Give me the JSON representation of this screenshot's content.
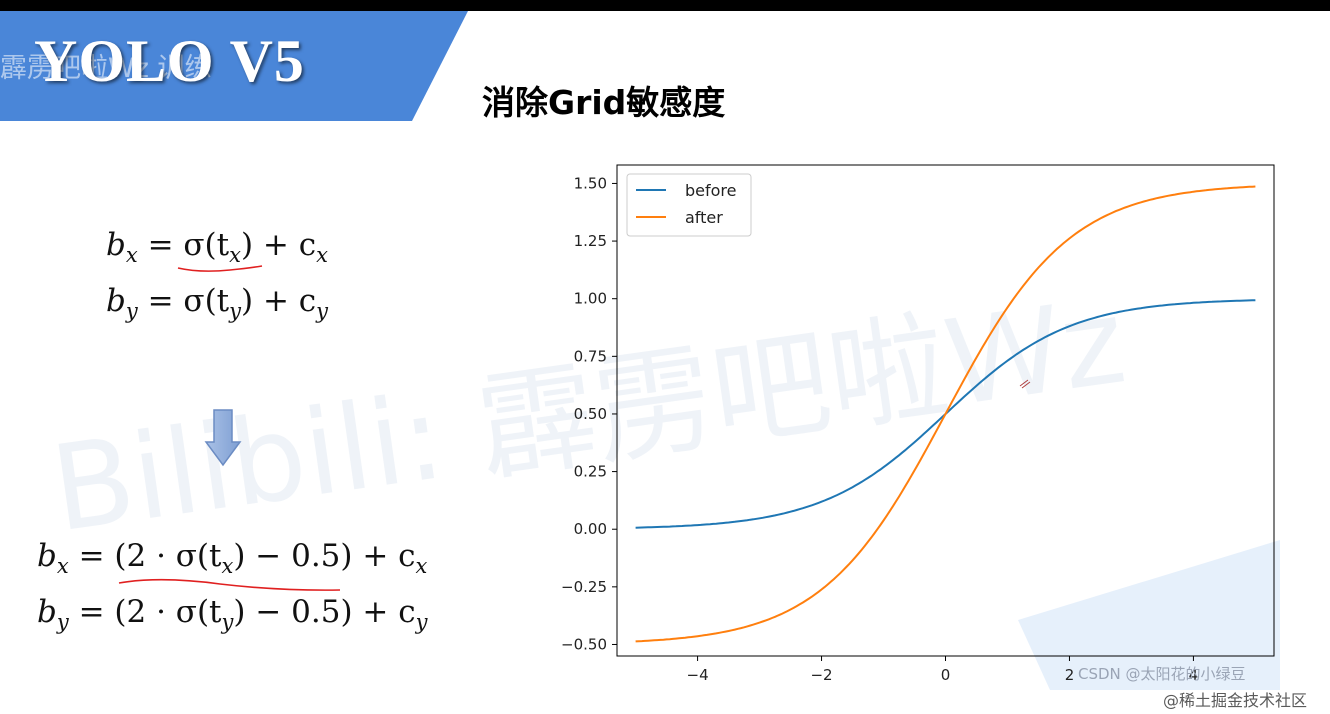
{
  "banner": {
    "title": "YOLO V5",
    "watermark": "霹雳吧啦Wz 训练",
    "color": "#4a86d8"
  },
  "heading": "消除Grid敏感度",
  "background_watermark": "Bilibili: 霹雳吧啦Wz",
  "equations": {
    "original": [
      {
        "lhs": "b",
        "lhs_sub": "x",
        "expr": "= σ(t",
        "expr_sub": "x",
        "tail": ") + c",
        "tail_sub": "x"
      },
      {
        "lhs": "b",
        "lhs_sub": "y",
        "expr": "= σ(t",
        "expr_sub": "y",
        "tail": ") + c",
        "tail_sub": "y"
      }
    ],
    "modified": [
      {
        "lhs": "b",
        "lhs_sub": "x",
        "expr": "= (2 · σ(t",
        "expr_sub": "x",
        "tail": ") − 0.5) + c",
        "tail_sub": "x"
      },
      {
        "lhs": "b",
        "lhs_sub": "y",
        "expr": "= (2 · σ(t",
        "expr_sub": "y",
        "tail": ") − 0.5) + c",
        "tail_sub": "y"
      }
    ]
  },
  "arrow_icon": "down-arrow-icon",
  "chart_data": {
    "type": "line",
    "xlim": [
      -5.3,
      5.3
    ],
    "ylim": [
      -0.55,
      1.58
    ],
    "xticks": [
      -4,
      -2,
      0,
      2,
      4
    ],
    "yticks": [
      -0.5,
      -0.25,
      0.0,
      0.25,
      0.5,
      0.75,
      1.0,
      1.25,
      1.5
    ],
    "ytick_labels": [
      "−0.50",
      "−0.25",
      "0.00",
      "0.25",
      "0.50",
      "0.75",
      "1.00",
      "1.25",
      "1.50"
    ],
    "xtick_labels": [
      "−4",
      "−2",
      "0",
      "2",
      "4"
    ],
    "legend_position": "top-left",
    "series": [
      {
        "name": "before",
        "color": "#1f77b4",
        "formula": "sigmoid(x)",
        "x": [
          -5,
          -4,
          -3,
          -2,
          -1,
          0,
          1,
          2,
          3,
          4,
          5
        ],
        "y": [
          0.007,
          0.018,
          0.047,
          0.119,
          0.269,
          0.5,
          0.731,
          0.881,
          0.953,
          0.982,
          0.993
        ]
      },
      {
        "name": "after",
        "color": "#ff7f0e",
        "formula": "2*sigmoid(x)-0.5",
        "x": [
          -5,
          -4,
          -3,
          -2,
          -1,
          0,
          1,
          2,
          3,
          4,
          5
        ],
        "y": [
          -0.487,
          -0.464,
          -0.405,
          -0.262,
          0.038,
          0.5,
          0.962,
          1.262,
          1.405,
          1.464,
          1.487
        ]
      }
    ]
  },
  "credit": "CSDN @太阳花的小绿豆",
  "site": "@稀土掘金技术社区",
  "annotation_color": "#e02020"
}
